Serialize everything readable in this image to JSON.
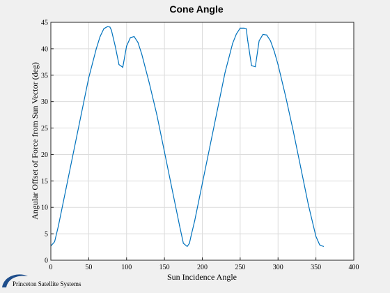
{
  "colors": {
    "figure_background": "#f0f0f0",
    "axes_background": "#ffffff",
    "line": "#0072bd",
    "grid": "#dcdcdc",
    "logo": "#1f4e8c"
  },
  "brand": {
    "logo_icon": "princeton-swoosh-icon",
    "text": "Princeton Satellite Systems"
  },
  "chart_data": {
    "type": "line",
    "title": "Cone Angle",
    "xlabel": "Sun Incidence Angle",
    "ylabel": "Angular Offset of Force from Sun Vector (deg)",
    "xlim": [
      0,
      400
    ],
    "ylim": [
      0,
      45
    ],
    "xticks": [
      0,
      50,
      100,
      150,
      200,
      250,
      300,
      350,
      400
    ],
    "yticks": [
      0,
      5,
      10,
      15,
      20,
      25,
      30,
      35,
      40,
      45
    ],
    "grid": true,
    "series": [
      {
        "x": [
          0,
          5,
          10,
          20,
          30,
          40,
          50,
          60,
          65,
          70,
          75,
          78,
          80,
          85,
          90,
          95,
          100,
          105,
          110,
          115,
          120,
          130,
          140,
          150,
          160,
          170,
          175,
          180,
          183,
          185,
          190,
          200,
          210,
          220,
          230,
          240,
          245,
          250,
          255,
          258,
          260,
          265,
          270,
          275,
          280,
          285,
          290,
          295,
          300,
          310,
          320,
          330,
          340,
          350,
          355,
          360
        ],
        "y": [
          2.7,
          3.5,
          6.5,
          13.5,
          20.5,
          27.5,
          34.5,
          40.0,
          42.3,
          43.8,
          44.2,
          44.1,
          43.5,
          40.5,
          37.0,
          36.5,
          40.5,
          42.1,
          42.3,
          41.2,
          39.0,
          33.5,
          27.5,
          20.5,
          13.5,
          6.5,
          3.2,
          2.6,
          3.2,
          4.5,
          7.5,
          14.5,
          21.5,
          28.5,
          35.5,
          41.0,
          42.8,
          43.9,
          43.9,
          43.8,
          41.5,
          36.8,
          36.6,
          41.5,
          42.7,
          42.6,
          41.5,
          39.5,
          37.0,
          31.0,
          24.5,
          17.5,
          10.5,
          4.5,
          2.9,
          2.6
        ]
      }
    ]
  }
}
